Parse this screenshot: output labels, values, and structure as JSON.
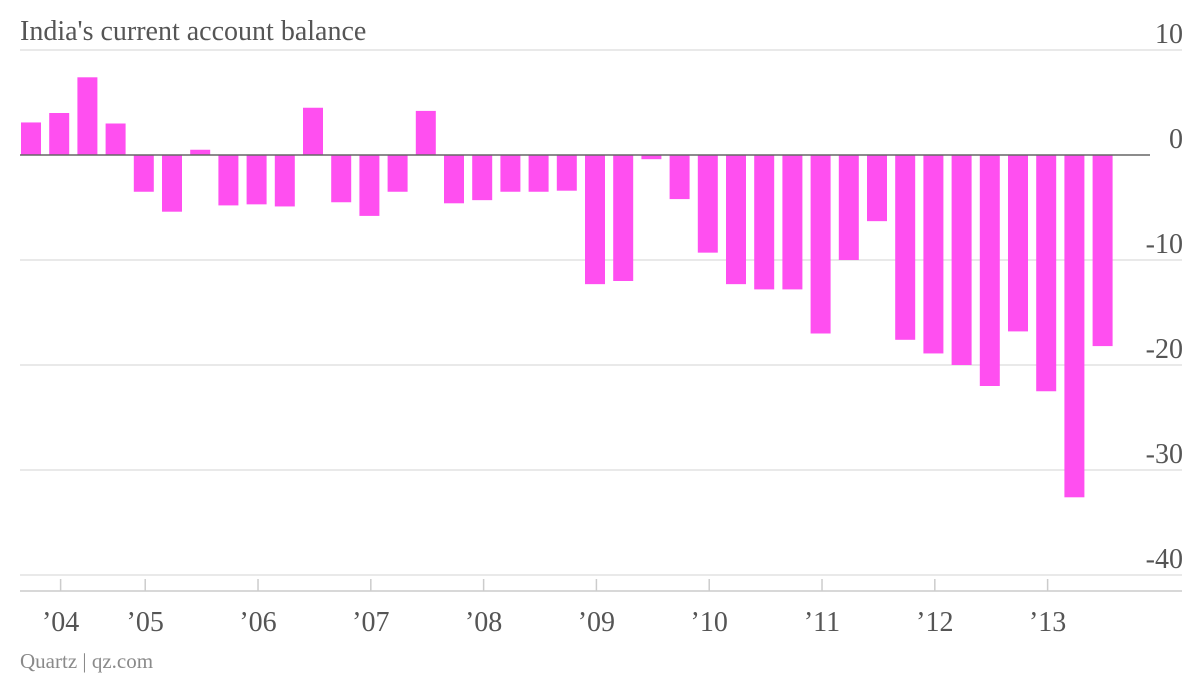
{
  "chart_data": {
    "type": "bar",
    "title": "India's current account balance",
    "y_ticks": [
      10,
      0,
      -10,
      -20,
      -30,
      -40
    ],
    "ylim": [
      -40,
      10
    ],
    "x_tick_labels": [
      "’04",
      "’05",
      "’06",
      "’07",
      "’08",
      "’09",
      "’10",
      "’11",
      "’12",
      "’13"
    ],
    "bars_per_year": 4,
    "values": [
      3.1,
      4.0,
      7.4,
      3.0,
      -3.5,
      -5.4,
      0.5,
      -4.8,
      -4.7,
      -4.9,
      4.5,
      -4.5,
      -5.8,
      -3.5,
      4.2,
      -4.6,
      -4.3,
      -3.5,
      -3.5,
      -3.4,
      -12.3,
      -12.0,
      -0.4,
      -4.2,
      -9.3,
      -12.3,
      -12.8,
      -12.8,
      -17.0,
      -10.0,
      -6.3,
      -17.6,
      -18.9,
      -20.0,
      -22.0,
      -16.8,
      -22.5,
      -32.6,
      -18.2
    ],
    "bar_color": "#ff4ff0",
    "grid": true,
    "source": "Quartz | qz.com"
  }
}
